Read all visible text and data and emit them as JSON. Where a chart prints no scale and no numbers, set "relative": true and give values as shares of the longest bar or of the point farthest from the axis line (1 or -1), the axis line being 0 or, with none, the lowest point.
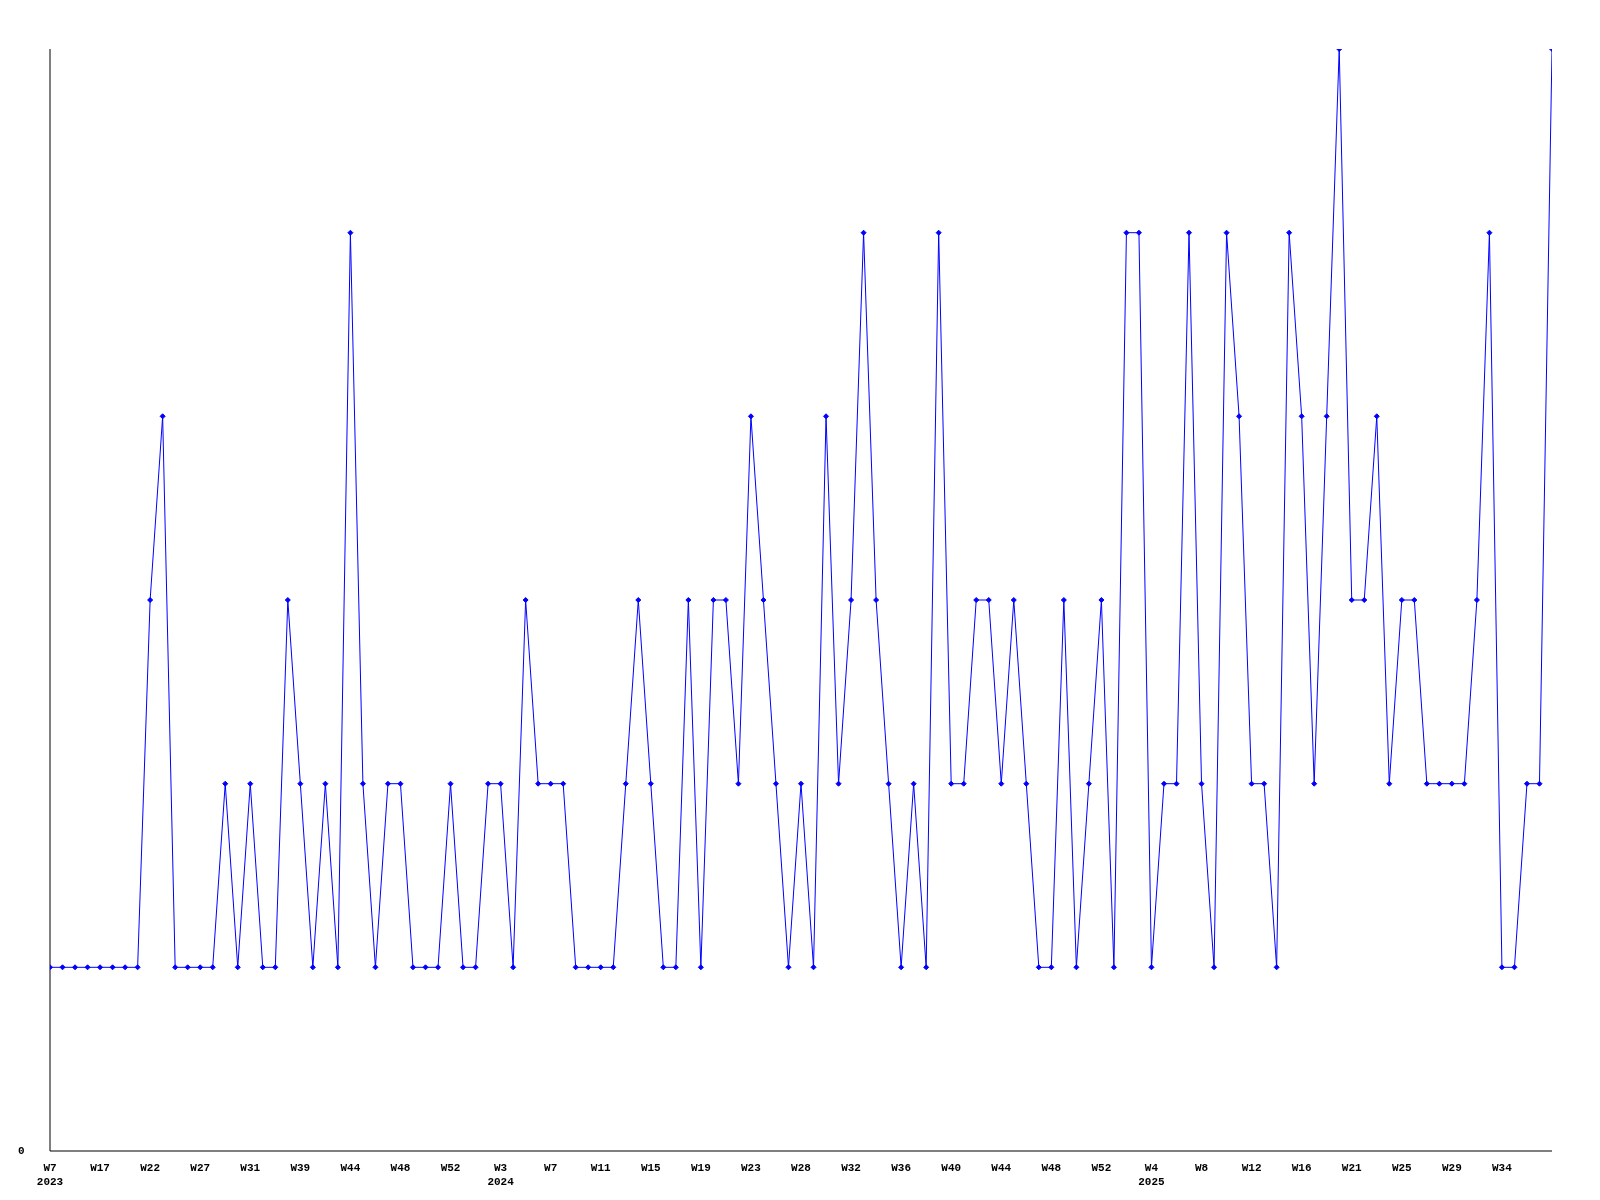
{
  "chart_data": {
    "type": "line",
    "relative": true,
    "marker": "diamond",
    "grid": false,
    "legend": false,
    "annotations": [
      "0"
    ],
    "categories": [
      "W7\n2023",
      null,
      null,
      null,
      "W17",
      null,
      null,
      null,
      "W22",
      null,
      null,
      null,
      "W27",
      null,
      null,
      null,
      "W31",
      null,
      null,
      null,
      "W39",
      null,
      null,
      null,
      "W44",
      null,
      null,
      null,
      "W48",
      null,
      null,
      null,
      "W52",
      null,
      null,
      null,
      "W3\n2024",
      null,
      null,
      null,
      "W7",
      null,
      null,
      null,
      "W11",
      null,
      null,
      null,
      "W15",
      null,
      null,
      null,
      "W19",
      null,
      null,
      null,
      "W23",
      null,
      null,
      null,
      "W28",
      null,
      null,
      null,
      "W32",
      null,
      null,
      null,
      "W36",
      null,
      null,
      null,
      "W40",
      null,
      null,
      null,
      "W44",
      null,
      null,
      null,
      "W48",
      null,
      null,
      null,
      "W52",
      null,
      null,
      null,
      "W4\n2025",
      null,
      null,
      null,
      "W8",
      null,
      null,
      null,
      "W12",
      null,
      null,
      null,
      "W16",
      null,
      null,
      null,
      "W21",
      null,
      null,
      null,
      "W25",
      null,
      null,
      null,
      "W29",
      null,
      null,
      null,
      "W34",
      null,
      null,
      null,
      null
    ],
    "series": [
      {
        "color": "#0000ff",
        "values": [
          0.1667,
          0.1667,
          0.1667,
          0.1667,
          0.1667,
          0.1667,
          0.1667,
          0.1667,
          0.5,
          0.6667,
          0.1667,
          0.1667,
          0.1667,
          0.1667,
          0.3333,
          0.1667,
          0.3333,
          0.1667,
          0.1667,
          0.5,
          0.3333,
          0.1667,
          0.3333,
          0.1667,
          0.8333,
          0.3333,
          0.1667,
          0.3333,
          0.3333,
          0.1667,
          0.1667,
          0.1667,
          0.3333,
          0.1667,
          0.1667,
          0.3333,
          0.3333,
          0.1667,
          0.5,
          0.3333,
          0.3333,
          0.3333,
          0.1667,
          0.1667,
          0.1667,
          0.1667,
          0.3333,
          0.5,
          0.3333,
          0.1667,
          0.1667,
          0.5,
          0.1667,
          0.5,
          0.5,
          0.3333,
          0.6667,
          0.5,
          0.3333,
          0.1667,
          0.3333,
          0.1667,
          0.6667,
          0.3333,
          0.5,
          0.8333,
          0.5,
          0.3333,
          0.1667,
          0.3333,
          0.1667,
          0.8333,
          0.3333,
          0.3333,
          0.5,
          0.5,
          0.3333,
          0.5,
          0.3333,
          0.1667,
          0.1667,
          0.5,
          0.1667,
          0.3333,
          0.5,
          0.1667,
          0.8333,
          0.8333,
          0.1667,
          0.3333,
          0.3333,
          0.8333,
          0.3333,
          0.1667,
          0.8333,
          0.6667,
          0.3333,
          0.3333,
          0.1667,
          0.8333,
          0.6667,
          0.3333,
          0.6667,
          1,
          0.5,
          0.5,
          0.6667,
          0.3333,
          0.5,
          0.5,
          0.3333,
          0.3333,
          0.3333,
          0.3333,
          0.5,
          0.8333,
          0.1667,
          0.1667,
          0.3333,
          0.3333,
          1
        ]
      }
    ]
  }
}
